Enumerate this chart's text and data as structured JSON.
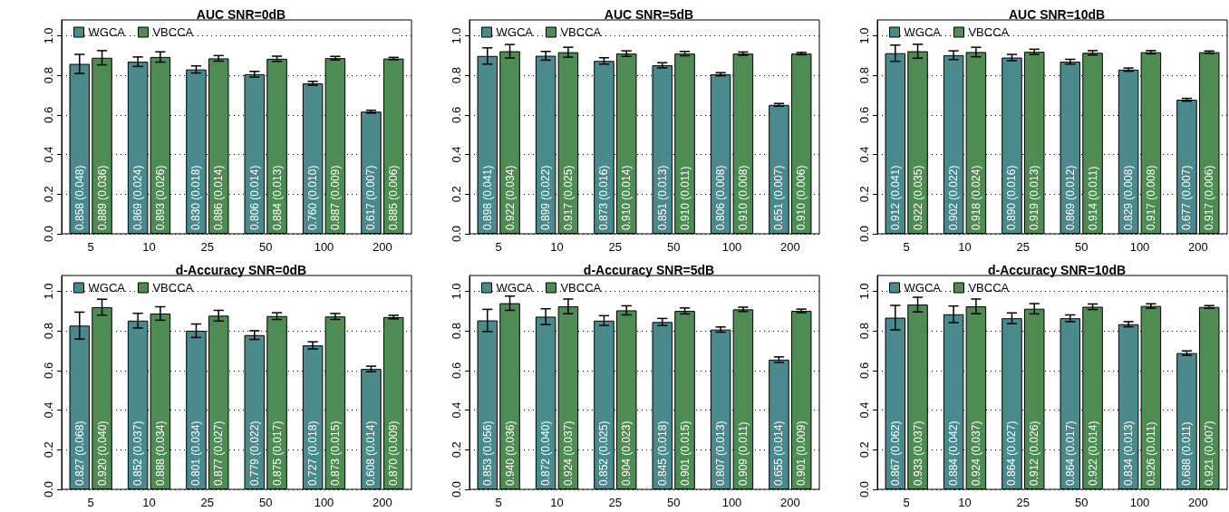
{
  "chart_data": [
    {
      "type": "bar",
      "title": "AUC SNR=0dB",
      "categories": [
        "5",
        "10",
        "25",
        "50",
        "100",
        "200"
      ],
      "ylim": [
        0,
        1.08
      ],
      "yticks": [
        {
          "value": 0,
          "label": "0.0"
        },
        {
          "value": 0.2,
          "label": "0.2"
        },
        {
          "value": 0.4,
          "label": "0.4"
        },
        {
          "value": 0.6,
          "label": "0.6"
        },
        {
          "value": 0.8,
          "label": "0.8"
        },
        {
          "value": 1,
          "label": "1.0"
        }
      ],
      "grid": "y",
      "legend": "top left",
      "series": [
        {
          "name": "WGCA",
          "color": "#4a8a8c",
          "values": [
            0.858,
            0.869,
            0.83,
            0.806,
            0.76,
            0.617
          ],
          "errors": [
            0.048,
            0.024,
            0.018,
            0.014,
            0.01,
            0.007
          ],
          "value_labels": [
            "0.858 (0.048)",
            "0.869 (0.024)",
            "0.830 (0.018)",
            "0.806 (0.014)",
            "0.760 (0.010)",
            "0.617 (0.007)"
          ]
        },
        {
          "name": "VBCCA",
          "color": "#4f8c54",
          "values": [
            0.889,
            0.893,
            0.886,
            0.884,
            0.887,
            0.885
          ],
          "errors": [
            0.036,
            0.026,
            0.014,
            0.013,
            0.009,
            0.006
          ],
          "value_labels": [
            "0.889 (0.036)",
            "0.893 (0.026)",
            "0.886 (0.014)",
            "0.884 (0.013)",
            "0.887 (0.009)",
            "0.885 (0.006)"
          ]
        }
      ]
    },
    {
      "type": "bar",
      "title": "AUC SNR=5dB",
      "categories": [
        "5",
        "10",
        "25",
        "50",
        "100",
        "200"
      ],
      "ylim": [
        0,
        1.08
      ],
      "yticks": [
        {
          "value": 0,
          "label": "0.0"
        },
        {
          "value": 0.2,
          "label": "0.2"
        },
        {
          "value": 0.4,
          "label": "0.4"
        },
        {
          "value": 0.6,
          "label": "0.6"
        },
        {
          "value": 0.8,
          "label": "0.8"
        },
        {
          "value": 1,
          "label": "1.0"
        }
      ],
      "grid": "y",
      "legend": "top left",
      "series": [
        {
          "name": "WGCA",
          "color": "#4a8a8c",
          "values": [
            0.898,
            0.899,
            0.873,
            0.851,
            0.806,
            0.651
          ],
          "errors": [
            0.041,
            0.022,
            0.016,
            0.013,
            0.008,
            0.007
          ],
          "value_labels": [
            "0.898 (0.041)",
            "0.899 (0.022)",
            "0.873 (0.016)",
            "0.851 (0.013)",
            "0.806 (0.008)",
            "0.651 (0.007)"
          ]
        },
        {
          "name": "VBCCA",
          "color": "#4f8c54",
          "values": [
            0.922,
            0.917,
            0.91,
            0.91,
            0.91,
            0.91
          ],
          "errors": [
            0.034,
            0.025,
            0.014,
            0.011,
            0.008,
            0.006
          ],
          "value_labels": [
            "0.922 (0.034)",
            "0.917 (0.025)",
            "0.910 (0.014)",
            "0.910 (0.011)",
            "0.910 (0.008)",
            "0.910 (0.006)"
          ]
        }
      ]
    },
    {
      "type": "bar",
      "title": "AUC SNR=10dB",
      "categories": [
        "5",
        "10",
        "25",
        "50",
        "100",
        "200"
      ],
      "ylim": [
        0,
        1.08
      ],
      "yticks": [
        {
          "value": 0,
          "label": "0.0"
        },
        {
          "value": 0.2,
          "label": "0.2"
        },
        {
          "value": 0.4,
          "label": "0.4"
        },
        {
          "value": 0.6,
          "label": "0.6"
        },
        {
          "value": 0.8,
          "label": "0.8"
        },
        {
          "value": 1,
          "label": "1.0"
        }
      ],
      "grid": "y",
      "legend": "top left",
      "series": [
        {
          "name": "WGCA",
          "color": "#4a8a8c",
          "values": [
            0.912,
            0.902,
            0.89,
            0.869,
            0.829,
            0.677
          ],
          "errors": [
            0.041,
            0.022,
            0.016,
            0.012,
            0.008,
            0.007
          ],
          "value_labels": [
            "0.912 (0.041)",
            "0.902 (0.022)",
            "0.890 (0.016)",
            "0.869 (0.012)",
            "0.829 (0.008)",
            "0.677 (0.007)"
          ]
        },
        {
          "name": "VBCCA",
          "color": "#4f8c54",
          "values": [
            0.922,
            0.918,
            0.919,
            0.914,
            0.917,
            0.917
          ],
          "errors": [
            0.035,
            0.024,
            0.013,
            0.011,
            0.008,
            0.006
          ],
          "value_labels": [
            "0.922 (0.035)",
            "0.918 (0.024)",
            "0.919 (0.013)",
            "0.914 (0.011)",
            "0.917 (0.008)",
            "0.917 (0.006)"
          ]
        }
      ]
    },
    {
      "type": "bar",
      "title": "d-Accuracy SNR=0dB",
      "categories": [
        "5",
        "10",
        "25",
        "50",
        "100",
        "200"
      ],
      "ylim": [
        0,
        1.08
      ],
      "yticks": [
        {
          "value": 0,
          "label": "0.0"
        },
        {
          "value": 0.2,
          "label": "0.2"
        },
        {
          "value": 0.4,
          "label": "0.4"
        },
        {
          "value": 0.6,
          "label": "0.6"
        },
        {
          "value": 0.8,
          "label": "0.8"
        },
        {
          "value": 1,
          "label": "1.0"
        }
      ],
      "grid": "y",
      "legend": "top left",
      "series": [
        {
          "name": "WGCA",
          "color": "#4a8a8c",
          "values": [
            0.827,
            0.852,
            0.801,
            0.779,
            0.727,
            0.608
          ],
          "errors": [
            0.068,
            0.037,
            0.034,
            0.022,
            0.018,
            0.014
          ],
          "value_labels": [
            "0.827 (0.068)",
            "0.852 (0.037)",
            "0.801 (0.034)",
            "0.779 (0.022)",
            "0.727 (0.018)",
            "0.608 (0.014)"
          ]
        },
        {
          "name": "VBCCA",
          "color": "#4f8c54",
          "values": [
            0.92,
            0.888,
            0.877,
            0.875,
            0.873,
            0.87
          ],
          "errors": [
            0.04,
            0.034,
            0.027,
            0.017,
            0.015,
            0.009
          ],
          "value_labels": [
            "0.920 (0.040)",
            "0.888 (0.034)",
            "0.877 (0.027)",
            "0.875 (0.017)",
            "0.873 (0.015)",
            "0.870 (0.009)"
          ]
        }
      ]
    },
    {
      "type": "bar",
      "title": "d-Accuracy SNR=5dB",
      "categories": [
        "5",
        "10",
        "25",
        "50",
        "100",
        "200"
      ],
      "ylim": [
        0,
        1.08
      ],
      "yticks": [
        {
          "value": 0,
          "label": "0.0"
        },
        {
          "value": 0.2,
          "label": "0.2"
        },
        {
          "value": 0.4,
          "label": "0.4"
        },
        {
          "value": 0.6,
          "label": "0.6"
        },
        {
          "value": 0.8,
          "label": "0.8"
        },
        {
          "value": 1,
          "label": "1.0"
        }
      ],
      "grid": "y",
      "legend": "top left",
      "series": [
        {
          "name": "WGCA",
          "color": "#4a8a8c",
          "values": [
            0.853,
            0.872,
            0.852,
            0.845,
            0.807,
            0.655
          ],
          "errors": [
            0.056,
            0.04,
            0.025,
            0.018,
            0.013,
            0.014
          ],
          "value_labels": [
            "0.853 (0.056)",
            "0.872 (0.040)",
            "0.852 (0.025)",
            "0.845 (0.018)",
            "0.807 (0.013)",
            "0.655 (0.014)"
          ]
        },
        {
          "name": "VBCCA",
          "color": "#4f8c54",
          "values": [
            0.94,
            0.924,
            0.904,
            0.901,
            0.909,
            0.901
          ],
          "errors": [
            0.036,
            0.037,
            0.023,
            0.015,
            0.011,
            0.009
          ],
          "value_labels": [
            "0.940 (0.036)",
            "0.924 (0.037)",
            "0.904 (0.023)",
            "0.901 (0.015)",
            "0.909 (0.011)",
            "0.901 (0.009)"
          ]
        }
      ]
    },
    {
      "type": "bar",
      "title": "d-Accuracy SNR=10dB",
      "categories": [
        "5",
        "10",
        "25",
        "50",
        "100",
        "200"
      ],
      "ylim": [
        0,
        1.08
      ],
      "yticks": [
        {
          "value": 0,
          "label": "0.0"
        },
        {
          "value": 0.2,
          "label": "0.2"
        },
        {
          "value": 0.4,
          "label": "0.4"
        },
        {
          "value": 0.6,
          "label": "0.6"
        },
        {
          "value": 0.8,
          "label": "0.8"
        },
        {
          "value": 1,
          "label": "1.0"
        }
      ],
      "grid": "y",
      "legend": "top left",
      "series": [
        {
          "name": "WGCA",
          "color": "#4a8a8c",
          "values": [
            0.867,
            0.884,
            0.864,
            0.864,
            0.834,
            0.688
          ],
          "errors": [
            0.062,
            0.042,
            0.027,
            0.017,
            0.013,
            0.011
          ],
          "value_labels": [
            "0.867 (0.062)",
            "0.884 (0.042)",
            "0.864 (0.027)",
            "0.864 (0.017)",
            "0.834 (0.013)",
            "0.688 (0.011)"
          ]
        },
        {
          "name": "VBCCA",
          "color": "#4f8c54",
          "values": [
            0.933,
            0.924,
            0.912,
            0.922,
            0.926,
            0.921
          ],
          "errors": [
            0.037,
            0.037,
            0.026,
            0.014,
            0.011,
            0.007
          ],
          "value_labels": [
            "0.933 (0.037)",
            "0.924 (0.037)",
            "0.912 (0.026)",
            "0.922 (0.014)",
            "0.926 (0.011)",
            "0.921 (0.007)"
          ]
        }
      ]
    }
  ]
}
